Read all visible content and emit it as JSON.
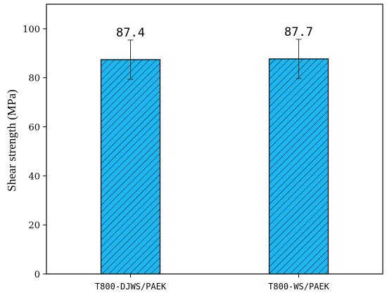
{
  "chart_data": {
    "type": "bar",
    "categories": [
      "T800-DJWS/PAEK",
      "T800-WS/PAEK"
    ],
    "values": [
      87.4,
      87.7
    ],
    "data_labels": [
      "87.4",
      "87.7"
    ],
    "error": [
      8,
      8
    ],
    "title": "",
    "xlabel": "",
    "ylabel": "Shear strength (MPa)",
    "ylim": [
      0,
      110
    ],
    "yticks": [
      0,
      20,
      40,
      60,
      80,
      100
    ],
    "ytick_labels": [
      "0",
      "20",
      "40",
      "60",
      "80",
      "100"
    ],
    "grid": false,
    "bar_color": "#1EB6F0",
    "hatch": "diagonal"
  }
}
